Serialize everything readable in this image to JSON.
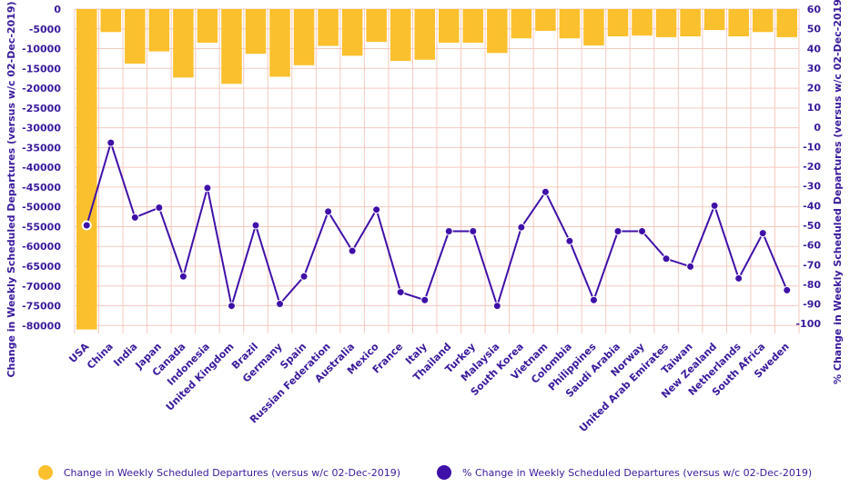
{
  "chart_data": {
    "type": "bar+line",
    "categories": [
      "USA",
      "China",
      "India",
      "Japan",
      "Canada",
      "Indonesia",
      "United Kingdom",
      "Brazil",
      "Germany",
      "Spain",
      "Russian Federation",
      "Australia",
      "Mexico",
      "France",
      "Italy",
      "Thailand",
      "Turkey",
      "Malaysia",
      "South Korea",
      "Vietnam",
      "Colombia",
      "Philippines",
      "Saudi Arabia",
      "Norway",
      "United Arab Emirates",
      "Taiwan",
      "New Zealand",
      "Netherlands",
      "South Africa",
      "Sweden"
    ],
    "series": [
      {
        "name": "Change in Weekly Scheduled Departures (versus w/c 02-Dec-2019)",
        "type": "bar",
        "axis": "left",
        "color": "#FBC02D",
        "values": [
          -81000,
          -5800,
          -13800,
          -10700,
          -17300,
          -8500,
          -18900,
          -11300,
          -17100,
          -14200,
          -9300,
          -11800,
          -8300,
          -13100,
          -12800,
          -8500,
          -8500,
          -11100,
          -7400,
          -5500,
          -7400,
          -9200,
          -6900,
          -6700,
          -7100,
          -6900,
          -5300,
          -6900,
          -5800,
          -7100
        ]
      },
      {
        "name": "% Change in Weekly Scheduled Departures (versus w/c 02-Dec-2019)",
        "type": "line",
        "axis": "right",
        "color": "#3F10A8",
        "values": [
          -50,
          -8,
          -46,
          -41,
          -76,
          -31,
          -91,
          -50,
          -90,
          -76,
          -43,
          -63,
          -42,
          -84,
          -88,
          -53,
          -53,
          -91,
          -51,
          -33,
          -58,
          -88,
          -53,
          -53,
          -67,
          -71,
          -40,
          -77,
          -54,
          -83
        ]
      }
    ],
    "ylabel": "Change in Weekly Scheduled Departures (versus w/c 02-Dec-2019)",
    "y2label": "% Change in Weekly Scheduled Departures (versus w/c 02-Dec-2019)",
    "ylim": [
      -82000,
      0
    ],
    "y2lim": [
      -105,
      60
    ],
    "yticks": [
      0,
      -5000,
      -10000,
      -15000,
      -20000,
      -25000,
      -30000,
      -35000,
      -40000,
      -45000,
      -50000,
      -55000,
      -60000,
      -65000,
      -70000,
      -75000,
      -80000
    ],
    "y2ticks": [
      60,
      50,
      40,
      30,
      20,
      10,
      0,
      -10,
      -20,
      -30,
      -40,
      -50,
      -60,
      -70,
      -80,
      -90,
      -100
    ],
    "grid": true,
    "legend": "bottom"
  },
  "legend": {
    "bar_label": "Change in Weekly Scheduled Departures (versus w/c 02-Dec-2019)",
    "line_label": "% Change in Weekly Scheduled Departures (versus w/c 02-Dec-2019)"
  },
  "colors": {
    "bar": "#FBC02D",
    "line": "#3F10A8",
    "grid": "#F6C9BF",
    "text": "#3A1A9C"
  }
}
